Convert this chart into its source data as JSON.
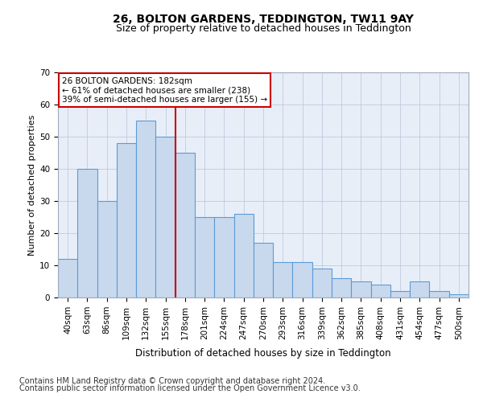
{
  "title": "26, BOLTON GARDENS, TEDDINGTON, TW11 9AY",
  "subtitle": "Size of property relative to detached houses in Teddington",
  "xlabel": "Distribution of detached houses by size in Teddington",
  "ylabel": "Number of detached properties",
  "categories": [
    "40sqm",
    "63sqm",
    "86sqm",
    "109sqm",
    "132sqm",
    "155sqm",
    "178sqm",
    "201sqm",
    "224sqm",
    "247sqm",
    "270sqm",
    "293sqm",
    "316sqm",
    "339sqm",
    "362sqm",
    "385sqm",
    "408sqm",
    "431sqm",
    "454sqm",
    "477sqm",
    "500sqm"
  ],
  "values": [
    12,
    40,
    30,
    48,
    55,
    50,
    45,
    25,
    25,
    26,
    17,
    11,
    11,
    9,
    6,
    5,
    4,
    2,
    5,
    2,
    1
  ],
  "bar_color": "#c9d9ed",
  "bar_edge_color": "#5b9bd5",
  "vline_x": 6.0,
  "vline_color": "#cc0000",
  "annotation_text": "26 BOLTON GARDENS: 182sqm\n← 61% of detached houses are smaller (238)\n39% of semi-detached houses are larger (155) →",
  "annotation_box_color": "#ffffff",
  "annotation_box_edge": "#cc0000",
  "ylim": [
    0,
    70
  ],
  "yticks": [
    0,
    10,
    20,
    30,
    40,
    50,
    60,
    70
  ],
  "footer1": "Contains HM Land Registry data © Crown copyright and database right 2024.",
  "footer2": "Contains public sector information licensed under the Open Government Licence v3.0.",
  "plot_background": "#e8eef8",
  "title_fontsize": 10,
  "subtitle_fontsize": 9,
  "xlabel_fontsize": 8.5,
  "ylabel_fontsize": 8,
  "tick_fontsize": 7.5,
  "footer_fontsize": 7
}
